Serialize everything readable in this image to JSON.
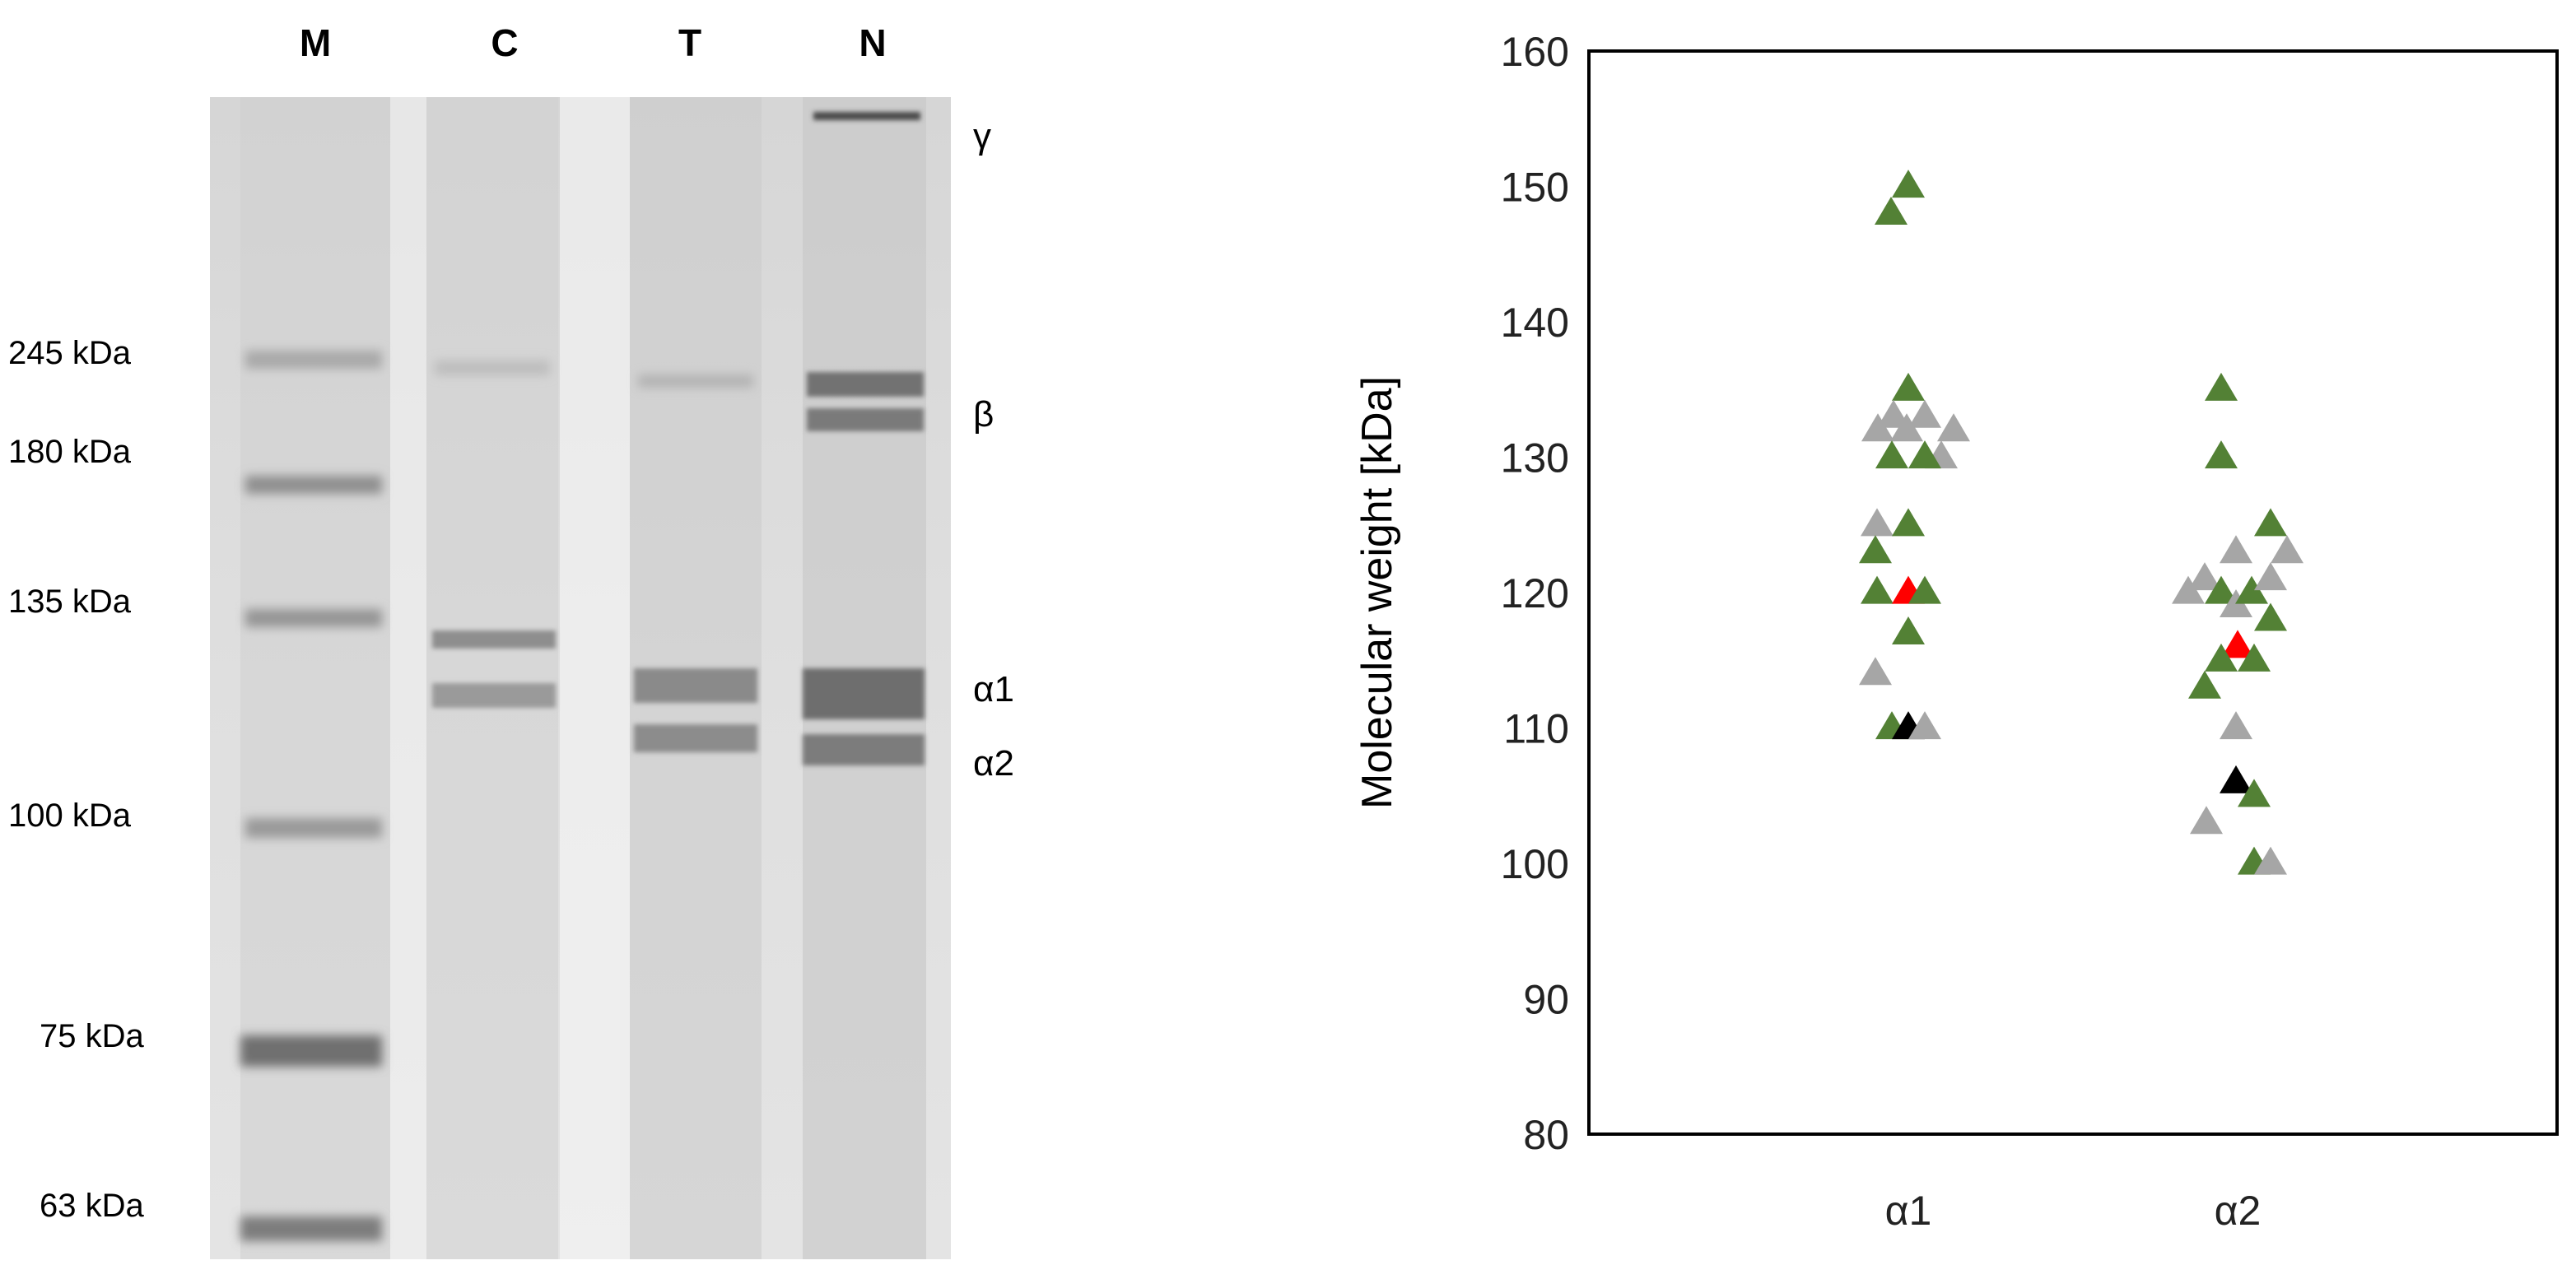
{
  "gel": {
    "lanes": [
      "M",
      "C",
      "T",
      "N"
    ],
    "markers": [
      "245 kDa",
      "180 kDa",
      "135 kDa",
      "100 kDa",
      "75 kDa",
      "63 kDa"
    ],
    "band_labels": [
      "γ",
      "β",
      "α1",
      "α2"
    ]
  },
  "colors": {
    "green": "#538135",
    "gray": "#a6a6a6",
    "red": "#ff0000",
    "black": "#000000"
  },
  "chart_data": {
    "type": "scatter",
    "title": "",
    "xlabel": "",
    "ylabel": "Molecular weight [kDa]",
    "categories": [
      "α1",
      "α2"
    ],
    "ylim": [
      80,
      160
    ],
    "yticks": [
      80,
      90,
      100,
      110,
      120,
      130,
      140,
      150,
      160
    ],
    "grid": false,
    "legend": "none",
    "points": [
      {
        "category": "α1",
        "offset": -0.21,
        "y": 148,
        "color": "green"
      },
      {
        "category": "α1",
        "offset": 0.0,
        "y": 150,
        "color": "green"
      },
      {
        "category": "α1",
        "offset": 0.0,
        "y": 135,
        "color": "green"
      },
      {
        "category": "α1",
        "offset": -0.37,
        "y": 132,
        "color": "gray"
      },
      {
        "category": "α1",
        "offset": -0.18,
        "y": 133,
        "color": "gray"
      },
      {
        "category": "α1",
        "offset": -0.02,
        "y": 132,
        "color": "gray"
      },
      {
        "category": "α1",
        "offset": 0.2,
        "y": 133,
        "color": "gray"
      },
      {
        "category": "α1",
        "offset": 0.4,
        "y": 130,
        "color": "gray"
      },
      {
        "category": "α1",
        "offset": 0.55,
        "y": 132,
        "color": "gray"
      },
      {
        "category": "α1",
        "offset": -0.2,
        "y": 130,
        "color": "green"
      },
      {
        "category": "α1",
        "offset": 0.2,
        "y": 130,
        "color": "green"
      },
      {
        "category": "α1",
        "offset": -0.38,
        "y": 125,
        "color": "gray"
      },
      {
        "category": "α1",
        "offset": 0.0,
        "y": 125,
        "color": "green"
      },
      {
        "category": "α1",
        "offset": -0.4,
        "y": 123,
        "color": "green"
      },
      {
        "category": "α1",
        "offset": -0.38,
        "y": 120,
        "color": "green"
      },
      {
        "category": "α1",
        "offset": 0.0,
        "y": 120,
        "color": "red"
      },
      {
        "category": "α1",
        "offset": 0.2,
        "y": 120,
        "color": "green"
      },
      {
        "category": "α1",
        "offset": 0.0,
        "y": 117,
        "color": "green"
      },
      {
        "category": "α1",
        "offset": -0.4,
        "y": 114,
        "color": "gray"
      },
      {
        "category": "α1",
        "offset": -0.2,
        "y": 110,
        "color": "green"
      },
      {
        "category": "α1",
        "offset": 0.0,
        "y": 110,
        "color": "black"
      },
      {
        "category": "α1",
        "offset": 0.2,
        "y": 110,
        "color": "gray"
      },
      {
        "category": "α2",
        "offset": -0.2,
        "y": 135,
        "color": "green"
      },
      {
        "category": "α2",
        "offset": -0.2,
        "y": 130,
        "color": "green"
      },
      {
        "category": "α2",
        "offset": -0.6,
        "y": 120,
        "color": "gray"
      },
      {
        "category": "α2",
        "offset": -0.4,
        "y": 121,
        "color": "gray"
      },
      {
        "category": "α2",
        "offset": -0.2,
        "y": 120,
        "color": "green"
      },
      {
        "category": "α2",
        "offset": -0.02,
        "y": 123,
        "color": "gray"
      },
      {
        "category": "α2",
        "offset": -0.02,
        "y": 119,
        "color": "gray"
      },
      {
        "category": "α2",
        "offset": 0.17,
        "y": 120,
        "color": "green"
      },
      {
        "category": "α2",
        "offset": 0.4,
        "y": 121,
        "color": "gray"
      },
      {
        "category": "α2",
        "offset": 0.4,
        "y": 125,
        "color": "green"
      },
      {
        "category": "α2",
        "offset": 0.6,
        "y": 123,
        "color": "gray"
      },
      {
        "category": "α2",
        "offset": 0.4,
        "y": 118,
        "color": "green"
      },
      {
        "category": "α2",
        "offset": 0.0,
        "y": 116,
        "color": "red"
      },
      {
        "category": "α2",
        "offset": -0.2,
        "y": 115,
        "color": "green"
      },
      {
        "category": "α2",
        "offset": 0.2,
        "y": 115,
        "color": "green"
      },
      {
        "category": "α2",
        "offset": -0.4,
        "y": 113,
        "color": "green"
      },
      {
        "category": "α2",
        "offset": -0.02,
        "y": 110,
        "color": "gray"
      },
      {
        "category": "α2",
        "offset": -0.02,
        "y": 106,
        "color": "black"
      },
      {
        "category": "α2",
        "offset": 0.2,
        "y": 105,
        "color": "green"
      },
      {
        "category": "α2",
        "offset": -0.38,
        "y": 103,
        "color": "gray"
      },
      {
        "category": "α2",
        "offset": 0.2,
        "y": 100,
        "color": "green"
      },
      {
        "category": "α2",
        "offset": 0.4,
        "y": 100,
        "color": "gray"
      }
    ]
  }
}
